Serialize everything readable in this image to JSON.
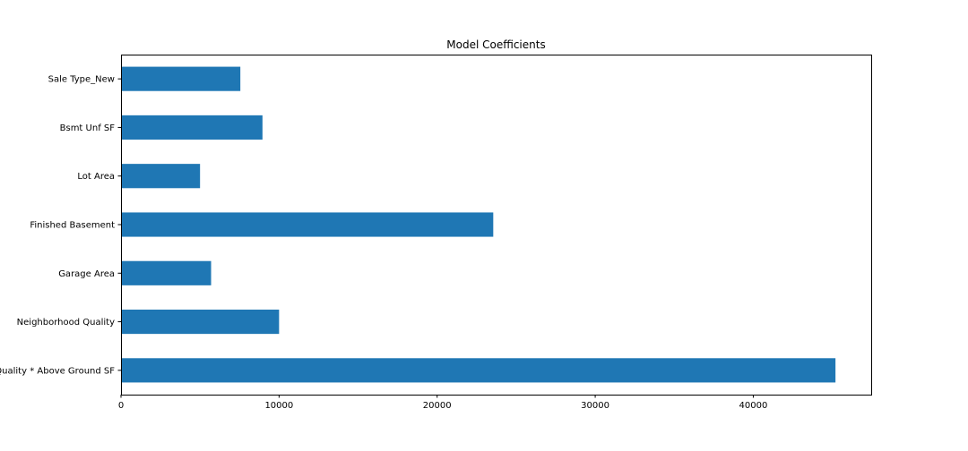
{
  "chart_data": {
    "type": "bar",
    "orientation": "horizontal",
    "title": "Model Coefficients",
    "xlabel": "",
    "ylabel": "",
    "categories": [
      "Sale Type_New",
      "Bsmt Unf SF",
      "Lot Area",
      "Finished Basement",
      "Garage Area",
      "Neighborhood Quality",
      "Overall Quality * Above Ground SF"
    ],
    "values": [
      7550,
      8950,
      5000,
      23550,
      5700,
      10000,
      45200
    ],
    "xlim": [
      0,
      47460
    ],
    "xticks": [
      0,
      10000,
      20000,
      30000,
      40000
    ],
    "xtick_labels": [
      "0",
      "10000",
      "20000",
      "30000",
      "40000"
    ],
    "bar_color": "#1f77b4",
    "grid": false,
    "legend": "none"
  }
}
